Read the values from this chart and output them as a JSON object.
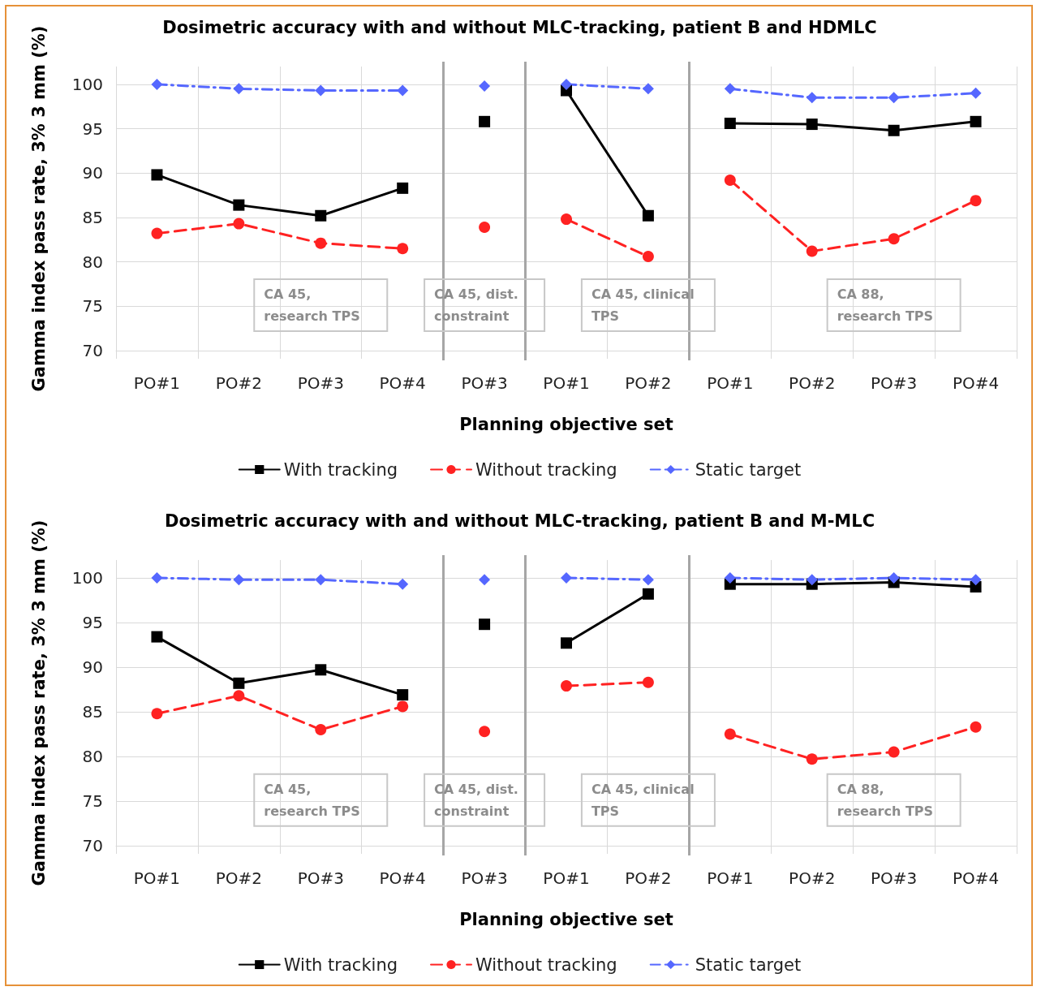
{
  "chart_data": [
    {
      "type": "line",
      "title": "Dosimetric accuracy with and without MLC-tracking, patient B and HDMLC",
      "xlabel": "Planning objective set",
      "ylabel": "Gamma index pass rate, 3% 3 mm (%)",
      "categories": [
        "PO#1",
        "PO#2",
        "PO#3",
        "PO#4",
        "PO#3",
        "PO#1",
        "PO#2",
        "PO#1",
        "PO#2",
        "PO#3",
        "PO#4"
      ],
      "series": [
        {
          "name": "With tracking",
          "color": "#000000",
          "marker": "square",
          "line_style": "solid",
          "values": [
            89.8,
            86.4,
            85.2,
            88.3,
            null,
            null,
            null,
            null,
            null,
            null,
            null
          ]
        },
        {
          "color": "#000000",
          "marker": "square",
          "line_style": "solid",
          "values": [
            null,
            null,
            null,
            null,
            95.8,
            null,
            null,
            null,
            null,
            null,
            null
          ]
        },
        {
          "color": "#000000",
          "marker": "square",
          "line_style": "solid",
          "values": [
            null,
            null,
            null,
            null,
            null,
            99.3,
            85.2,
            null,
            null,
            null,
            null
          ]
        },
        {
          "color": "#000000",
          "marker": "square",
          "line_style": "solid",
          "values": [
            null,
            null,
            null,
            null,
            null,
            null,
            null,
            95.6,
            95.5,
            94.8,
            95.8
          ]
        },
        {
          "name": "Without tracking",
          "color": "#ff2222",
          "marker": "circle",
          "line_style": "dashed",
          "values": [
            83.2,
            84.3,
            82.1,
            81.5,
            null,
            null,
            null,
            null,
            null,
            null,
            null
          ]
        },
        {
          "color": "#ff2222",
          "marker": "circle",
          "line_style": "dashed",
          "values": [
            null,
            null,
            null,
            null,
            83.9,
            null,
            null,
            null,
            null,
            null,
            null
          ]
        },
        {
          "color": "#ff2222",
          "marker": "circle",
          "line_style": "dashed",
          "values": [
            null,
            null,
            null,
            null,
            null,
            84.8,
            80.6,
            null,
            null,
            null,
            null
          ]
        },
        {
          "color": "#ff2222",
          "marker": "circle",
          "line_style": "dashed",
          "values": [
            null,
            null,
            null,
            null,
            null,
            null,
            null,
            89.2,
            81.2,
            82.6,
            86.9
          ]
        },
        {
          "name": "Static target",
          "color": "#5567ff",
          "marker": "diamond",
          "line_style": "dotted",
          "values": [
            100,
            99.5,
            99.3,
            99.3,
            null,
            null,
            null,
            null,
            null,
            null,
            null
          ]
        },
        {
          "color": "#5567ff",
          "marker": "diamond",
          "line_style": "dotted",
          "values": [
            null,
            null,
            null,
            null,
            99.8,
            null,
            null,
            null,
            null,
            null,
            null
          ]
        },
        {
          "color": "#5567ff",
          "marker": "diamond",
          "line_style": "dotted",
          "values": [
            null,
            null,
            null,
            null,
            null,
            100,
            99.5,
            null,
            null,
            null,
            null
          ]
        },
        {
          "color": "#5567ff",
          "marker": "diamond",
          "line_style": "dotted",
          "values": [
            null,
            null,
            null,
            null,
            null,
            null,
            null,
            99.5,
            98.5,
            98.5,
            99.0
          ]
        }
      ],
      "ylim": [
        70,
        102
      ],
      "yticks": [
        70,
        75,
        80,
        85,
        90,
        95,
        100
      ],
      "grid": true,
      "legend": "bottom",
      "annotations": [
        "CA 45, research TPS",
        "CA 45, dist. constraint",
        "CA 45, clinical TPS",
        "CA 88, research TPS"
      ]
    },
    {
      "type": "line",
      "title": "Dosimetric accuracy with and without MLC-tracking, patient B and M-MLC",
      "xlabel": "Planning objective set",
      "ylabel": "Gamma index pass rate, 3% 3 mm (%)",
      "categories": [
        "PO#1",
        "PO#2",
        "PO#3",
        "PO#4",
        "PO#3",
        "PO#1",
        "PO#2",
        "PO#1",
        "PO#2",
        "PO#3",
        "PO#4"
      ],
      "series": [
        {
          "name": "With tracking",
          "color": "#000000",
          "marker": "square",
          "line_style": "solid",
          "values": [
            93.4,
            88.2,
            89.7,
            86.9,
            null,
            null,
            null,
            null,
            null,
            null,
            null
          ]
        },
        {
          "color": "#000000",
          "marker": "square",
          "line_style": "solid",
          "values": [
            null,
            null,
            null,
            null,
            94.8,
            null,
            null,
            null,
            null,
            null,
            null
          ]
        },
        {
          "color": "#000000",
          "marker": "square",
          "line_style": "solid",
          "values": [
            null,
            null,
            null,
            null,
            null,
            92.7,
            98.2,
            null,
            null,
            null,
            null
          ]
        },
        {
          "color": "#000000",
          "marker": "square",
          "line_style": "solid",
          "values": [
            null,
            null,
            null,
            null,
            null,
            null,
            null,
            99.3,
            99.3,
            99.5,
            99.0
          ]
        },
        {
          "name": "Without tracking",
          "color": "#ff2222",
          "marker": "circle",
          "line_style": "dashed",
          "values": [
            84.8,
            86.8,
            83.0,
            85.6,
            null,
            null,
            null,
            null,
            null,
            null,
            null
          ]
        },
        {
          "color": "#ff2222",
          "marker": "circle",
          "line_style": "dashed",
          "values": [
            null,
            null,
            null,
            null,
            82.8,
            null,
            null,
            null,
            null,
            null,
            null
          ]
        },
        {
          "color": "#ff2222",
          "marker": "circle",
          "line_style": "dashed",
          "values": [
            null,
            null,
            null,
            null,
            null,
            87.9,
            88.3,
            null,
            null,
            null,
            null
          ]
        },
        {
          "color": "#ff2222",
          "marker": "circle",
          "line_style": "dashed",
          "values": [
            null,
            null,
            null,
            null,
            null,
            null,
            null,
            82.5,
            79.7,
            80.5,
            83.3
          ]
        },
        {
          "name": "Static target",
          "color": "#5567ff",
          "marker": "diamond",
          "line_style": "dotted",
          "values": [
            100,
            99.8,
            99.8,
            99.3,
            null,
            null,
            null,
            null,
            null,
            null,
            null
          ]
        },
        {
          "color": "#5567ff",
          "marker": "diamond",
          "line_style": "dotted",
          "values": [
            null,
            null,
            null,
            null,
            99.8,
            null,
            null,
            null,
            null,
            null,
            null
          ]
        },
        {
          "color": "#5567ff",
          "marker": "diamond",
          "line_style": "dotted",
          "values": [
            null,
            null,
            null,
            null,
            null,
            100,
            99.8,
            null,
            null,
            null,
            null
          ]
        },
        {
          "color": "#5567ff",
          "marker": "diamond",
          "line_style": "dotted",
          "values": [
            null,
            null,
            null,
            null,
            null,
            null,
            null,
            100,
            99.8,
            100,
            99.8
          ]
        }
      ],
      "ylim": [
        70,
        102
      ],
      "yticks": [
        70,
        75,
        80,
        85,
        90,
        95,
        100
      ],
      "grid": true,
      "legend": "bottom",
      "annotations": [
        "CA 45, research TPS",
        "CA 45, dist. constraint",
        "CA 45, clinical TPS",
        "CA 88, research TPS"
      ]
    }
  ]
}
